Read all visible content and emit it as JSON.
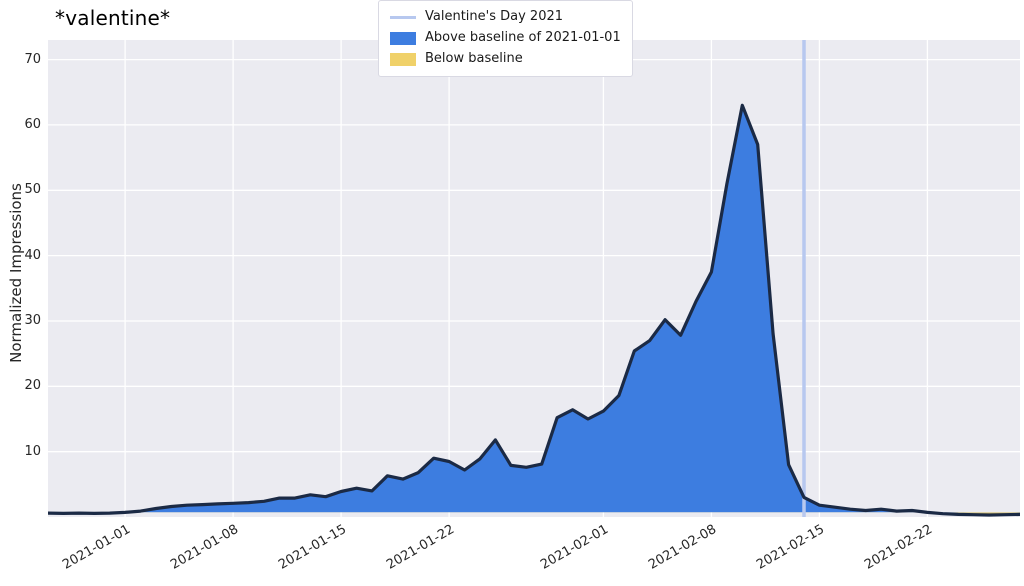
{
  "figure": {
    "title": "*valentine*"
  },
  "chart_data": {
    "type": "area",
    "title": "*valentine*",
    "xlabel": "",
    "ylabel": "Normalized Impressions",
    "ylim": [
      0,
      73
    ],
    "yticks": [
      10,
      20,
      30,
      40,
      50,
      60,
      70
    ],
    "xticks": [
      "2021-01-01",
      "2021-01-08",
      "2021-01-15",
      "2021-01-22",
      "2021-02-01",
      "2021-02-08",
      "2021-02-15",
      "2021-02-22"
    ],
    "grid": true,
    "legend_position": "top-center",
    "legend": [
      {
        "label": "Valentine's Day 2021",
        "swatch": "line",
        "color": "#b7c8ef"
      },
      {
        "label": "Above baseline of 2021-01-01",
        "swatch": "rect",
        "color": "#3d7de0"
      },
      {
        "label": "Below baseline",
        "swatch": "rect",
        "color": "#f0d169"
      }
    ],
    "baseline": {
      "date": "2021-01-01",
      "value": 0.7
    },
    "vline": {
      "date": "2021-02-14",
      "label": "Valentine's Day 2021",
      "color": "#b7c8ef",
      "width": 3.5
    },
    "colors": {
      "above": "#3d7de0",
      "below": "#f0d169",
      "line": "#1b2a45",
      "plot_bg": "#ebebf1",
      "grid": "#ffffff",
      "tick_text": "#262626"
    },
    "series": {
      "name": "*valentine*",
      "dates": [
        "2020-12-27",
        "2020-12-28",
        "2020-12-29",
        "2020-12-30",
        "2020-12-31",
        "2021-01-01",
        "2021-01-02",
        "2021-01-03",
        "2021-01-04",
        "2021-01-05",
        "2021-01-06",
        "2021-01-07",
        "2021-01-08",
        "2021-01-09",
        "2021-01-10",
        "2021-01-11",
        "2021-01-12",
        "2021-01-13",
        "2021-01-14",
        "2021-01-15",
        "2021-01-16",
        "2021-01-17",
        "2021-01-18",
        "2021-01-19",
        "2021-01-20",
        "2021-01-21",
        "2021-01-22",
        "2021-01-23",
        "2021-01-24",
        "2021-01-25",
        "2021-01-26",
        "2021-01-27",
        "2021-01-28",
        "2021-01-29",
        "2021-01-30",
        "2021-01-31",
        "2021-02-01",
        "2021-02-02",
        "2021-02-03",
        "2021-02-04",
        "2021-02-05",
        "2021-02-06",
        "2021-02-07",
        "2021-02-08",
        "2021-02-09",
        "2021-02-10",
        "2021-02-11",
        "2021-02-12",
        "2021-02-13",
        "2021-02-14",
        "2021-02-15",
        "2021-02-16",
        "2021-02-17",
        "2021-02-18",
        "2021-02-19",
        "2021-02-20",
        "2021-02-21",
        "2021-02-22",
        "2021-02-23",
        "2021-02-24",
        "2021-02-25",
        "2021-02-26",
        "2021-02-27",
        "2021-02-28"
      ],
      "values": [
        0.6,
        0.55,
        0.6,
        0.55,
        0.6,
        0.7,
        0.9,
        1.3,
        1.6,
        1.8,
        1.9,
        2.0,
        2.1,
        2.2,
        2.4,
        2.9,
        2.9,
        3.4,
        3.1,
        3.9,
        4.4,
        4.0,
        6.3,
        5.8,
        6.8,
        9.0,
        8.5,
        7.2,
        8.9,
        11.8,
        7.9,
        7.6,
        8.1,
        15.2,
        16.4,
        15.0,
        16.2,
        18.6,
        25.4,
        27.0,
        30.2,
        27.8,
        33.0,
        37.5,
        51.0,
        63.0,
        57.0,
        28.0,
        8.0,
        3.0,
        1.8,
        1.5,
        1.2,
        1.0,
        1.2,
        0.9,
        1.0,
        0.7,
        0.5,
        0.4,
        0.35,
        0.3,
        0.35,
        0.4
      ]
    }
  }
}
